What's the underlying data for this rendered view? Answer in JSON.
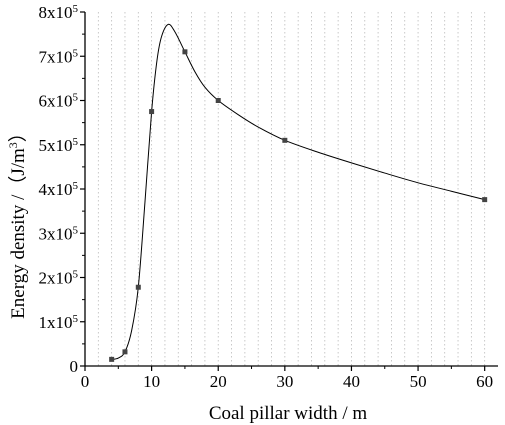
{
  "chart_data": {
    "type": "line",
    "title": "",
    "xlabel": "Coal pillar width / m",
    "ylabel_main": "Energy density /（J/m",
    "ylabel_sup": "3",
    "ylabel_close": "）",
    "xlim": [
      0,
      62
    ],
    "ylim": [
      0,
      800000
    ],
    "grid": "vertical-dotted",
    "legend": "none",
    "x_ticks": [
      {
        "value": 0,
        "label": "0"
      },
      {
        "value": 10,
        "label": "10"
      },
      {
        "value": 20,
        "label": "20"
      },
      {
        "value": 30,
        "label": "30"
      },
      {
        "value": 40,
        "label": "40"
      },
      {
        "value": 50,
        "label": "50"
      },
      {
        "value": 60,
        "label": "60"
      }
    ],
    "y_ticks": [
      {
        "value": 0,
        "label": "0",
        "mant": "",
        "exp": ""
      },
      {
        "value": 100000,
        "label": "",
        "mant": "1x10",
        "exp": "5"
      },
      {
        "value": 200000,
        "label": "",
        "mant": "2x10",
        "exp": "5"
      },
      {
        "value": 300000,
        "label": "",
        "mant": "3x10",
        "exp": "5"
      },
      {
        "value": 400000,
        "label": "",
        "mant": "4x10",
        "exp": "5"
      },
      {
        "value": 500000,
        "label": "",
        "mant": "5x10",
        "exp": "5"
      },
      {
        "value": 600000,
        "label": "",
        "mant": "6x10",
        "exp": "5"
      },
      {
        "value": 700000,
        "label": "",
        "mant": "7x10",
        "exp": "5"
      },
      {
        "value": 800000,
        "label": "",
        "mant": "8x10",
        "exp": "5"
      }
    ],
    "series": [
      {
        "points": [
          {
            "x": 4,
            "y": 15000
          },
          {
            "x": 6,
            "y": 32000
          },
          {
            "x": 8,
            "y": 178000
          },
          {
            "x": 10,
            "y": 575000
          },
          {
            "x": 15,
            "y": 710000
          },
          {
            "x": 20,
            "y": 600000
          },
          {
            "x": 30,
            "y": 510000
          },
          {
            "x": 60,
            "y": 376000
          }
        ],
        "curve": [
          {
            "x": 4,
            "y": 15000
          },
          {
            "x": 5,
            "y": 18000
          },
          {
            "x": 6,
            "y": 32000
          },
          {
            "x": 7,
            "y": 80000
          },
          {
            "x": 8,
            "y": 178000
          },
          {
            "x": 9,
            "y": 370000
          },
          {
            "x": 10,
            "y": 575000
          },
          {
            "x": 10.8,
            "y": 690000
          },
          {
            "x": 11.5,
            "y": 745000
          },
          {
            "x": 12.5,
            "y": 772000
          },
          {
            "x": 13.5,
            "y": 755000
          },
          {
            "x": 15,
            "y": 710000
          },
          {
            "x": 16.5,
            "y": 665000
          },
          {
            "x": 18,
            "y": 630000
          },
          {
            "x": 20,
            "y": 600000
          },
          {
            "x": 23,
            "y": 568000
          },
          {
            "x": 26,
            "y": 540000
          },
          {
            "x": 30,
            "y": 510000
          },
          {
            "x": 35,
            "y": 483000
          },
          {
            "x": 40,
            "y": 459000
          },
          {
            "x": 45,
            "y": 436000
          },
          {
            "x": 50,
            "y": 414000
          },
          {
            "x": 55,
            "y": 395000
          },
          {
            "x": 60,
            "y": 376000
          }
        ]
      }
    ],
    "colors": {
      "line": "#000000",
      "marker": "#444444",
      "grid": "#bbbbbb"
    }
  }
}
